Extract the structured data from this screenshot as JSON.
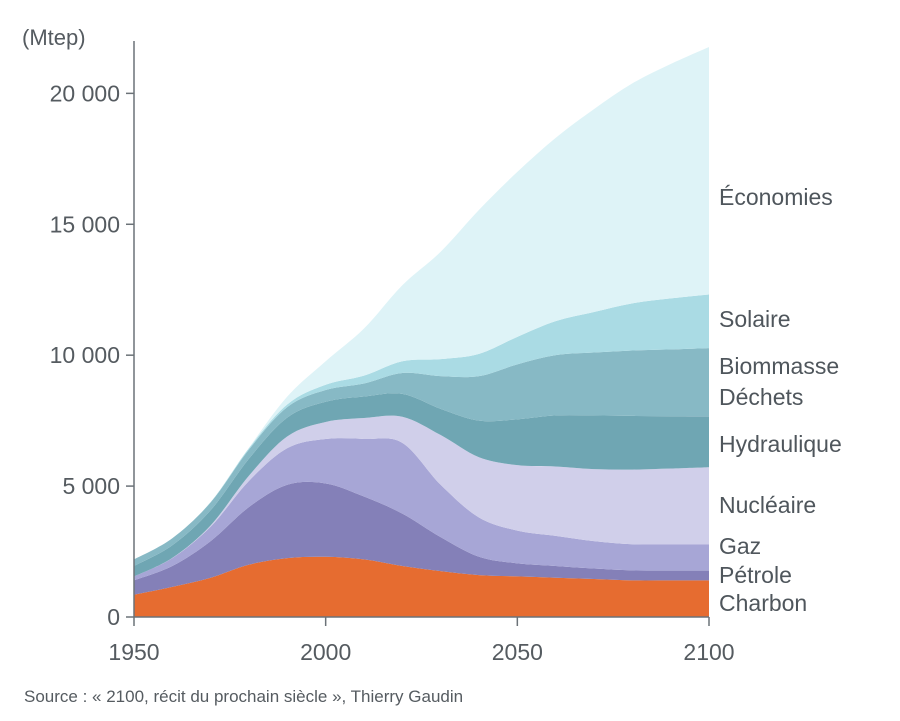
{
  "chart_data": {
    "type": "area",
    "stacked": true,
    "unit_label": "(Mtep)",
    "x": [
      1950,
      1960,
      1970,
      1980,
      1990,
      2000,
      2010,
      2020,
      2030,
      2040,
      2050,
      2060,
      2070,
      2080,
      2090,
      2100
    ],
    "xlim": [
      1950,
      2100
    ],
    "ylim": [
      0,
      22000
    ],
    "x_ticks": [
      1950,
      2000,
      2050,
      2100
    ],
    "x_tick_labels": [
      "1950",
      "2000",
      "2050",
      "2100"
    ],
    "y_ticks": [
      0,
      5000,
      10000,
      15000,
      20000
    ],
    "y_tick_labels": [
      "0",
      "5 000",
      "10 000",
      "15 000",
      "20 000"
    ],
    "grid": false,
    "legend": "inline-right",
    "series": [
      {
        "name": "Charbon",
        "color": "#e66c30",
        "values": [
          850,
          1150,
          1500,
          2000,
          2250,
          2300,
          2200,
          1950,
          1750,
          1600,
          1550,
          1500,
          1450,
          1400,
          1400,
          1400
        ]
      },
      {
        "name": "Pétrole",
        "color": "#8480b8",
        "values": [
          550,
          800,
          1400,
          2200,
          2800,
          2800,
          2400,
          2000,
          1300,
          700,
          500,
          450,
          400,
          380,
          370,
          370
        ]
      },
      {
        "name": "Gaz",
        "color": "#a7a6d6",
        "values": [
          150,
          300,
          550,
          1000,
          1400,
          1700,
          2200,
          2700,
          2000,
          1500,
          1250,
          1150,
          1050,
          1000,
          1000,
          1000
        ]
      },
      {
        "name": "Nucléaire",
        "color": "#d0cfea",
        "values": [
          0,
          10,
          50,
          200,
          450,
          650,
          800,
          1000,
          1900,
          2300,
          2500,
          2650,
          2750,
          2850,
          2900,
          2950
        ]
      },
      {
        "name": "Hydraulique",
        "color": "#6fa6b3",
        "values": [
          400,
          480,
          580,
          650,
          720,
          770,
          820,
          870,
          1000,
          1400,
          1750,
          1950,
          2050,
          2050,
          2000,
          1950
        ]
      },
      {
        "name": "Biomasse Déchets",
        "color": "#87b9c5",
        "values": [
          250,
          270,
          300,
          350,
          400,
          450,
          500,
          800,
          1250,
          1700,
          2100,
          2300,
          2400,
          2500,
          2550,
          2600
        ]
      },
      {
        "name": "Solaire",
        "color": "#aadbe4",
        "values": [
          0,
          0,
          10,
          50,
          100,
          200,
          300,
          450,
          650,
          850,
          1050,
          1300,
          1550,
          1800,
          1950,
          2050
        ]
      },
      {
        "name": "Économies",
        "color": "#def3f7",
        "values": [
          0,
          0,
          0,
          20,
          300,
          900,
          1800,
          2900,
          4100,
          5500,
          6300,
          7000,
          7750,
          8400,
          8950,
          9450
        ]
      }
    ]
  },
  "labels": {
    "economies": "Économies",
    "solaire": "Solaire",
    "biomasse": "Biommasse",
    "dechets": "Déchets",
    "hydraulique": "Hydraulique",
    "nucleaire": "Nucléaire",
    "gaz": "Gaz",
    "petrole": "Pétrole",
    "charbon": "Charbon"
  },
  "source": "Source : « 2100, récit du prochain siècle », Thierry Gaudin"
}
